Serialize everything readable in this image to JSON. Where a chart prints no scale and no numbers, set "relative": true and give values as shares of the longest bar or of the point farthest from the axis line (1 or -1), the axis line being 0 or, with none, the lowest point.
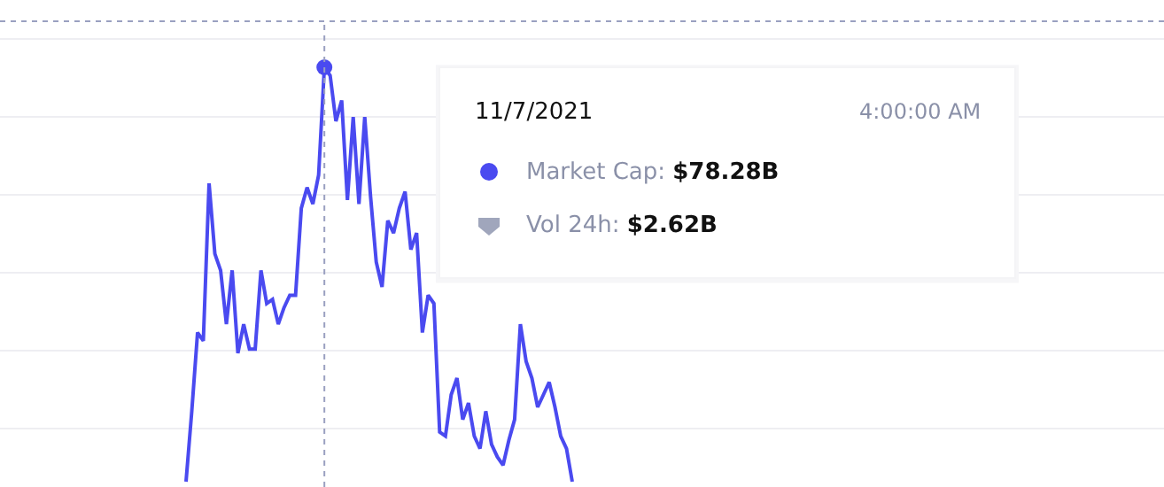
{
  "chart_data": {
    "type": "line",
    "relative": true,
    "grid": "y",
    "categories": [
      null,
      null,
      null,
      null,
      null,
      null,
      null,
      null,
      null,
      null,
      null,
      null,
      null,
      null,
      null,
      null,
      null,
      null,
      null,
      null,
      null,
      null,
      null,
      null,
      null,
      null,
      null,
      null,
      null,
      null,
      null,
      null,
      null,
      null,
      null,
      null,
      null,
      null,
      null,
      null,
      null,
      null,
      null,
      null,
      null,
      null,
      null,
      null,
      null,
      null,
      null,
      null,
      null,
      null,
      null,
      null,
      null,
      null,
      null,
      null,
      null,
      null,
      null,
      null,
      null,
      null,
      null,
      null
    ],
    "series": [
      {
        "color": "#4a4af0",
        "values": [
          0,
          0.17,
          0.36,
          0.34,
          0.72,
          0.55,
          0.51,
          0.38,
          0.51,
          0.31,
          0.38,
          0.32,
          0.32,
          0.51,
          0.43,
          0.44,
          0.38,
          0.42,
          0.45,
          0.45,
          0.66,
          0.71,
          0.67,
          0.74,
          1,
          0.98,
          0.87,
          0.92,
          0.68,
          0.88,
          0.67,
          0.88,
          0.69,
          0.53,
          0.47,
          0.63,
          0.6,
          0.66,
          0.7,
          0.56,
          0.6,
          0.36,
          0.45,
          0.43,
          0.12,
          0.11,
          0.21,
          0.25,
          0.15,
          0.19,
          0.11,
          0.08,
          0.17,
          0.09,
          0.06,
          0.04,
          0.1,
          0.15,
          0.38,
          0.29,
          0.25,
          0.18,
          0.21,
          0.24,
          0.18,
          0.11,
          0.08,
          0
        ]
      }
    ],
    "annotations": [
      "11/7/2021",
      "4:00:00 AM",
      "Market Cap: $78.28B",
      "Vol 24h: $2.62B"
    ]
  }
}
